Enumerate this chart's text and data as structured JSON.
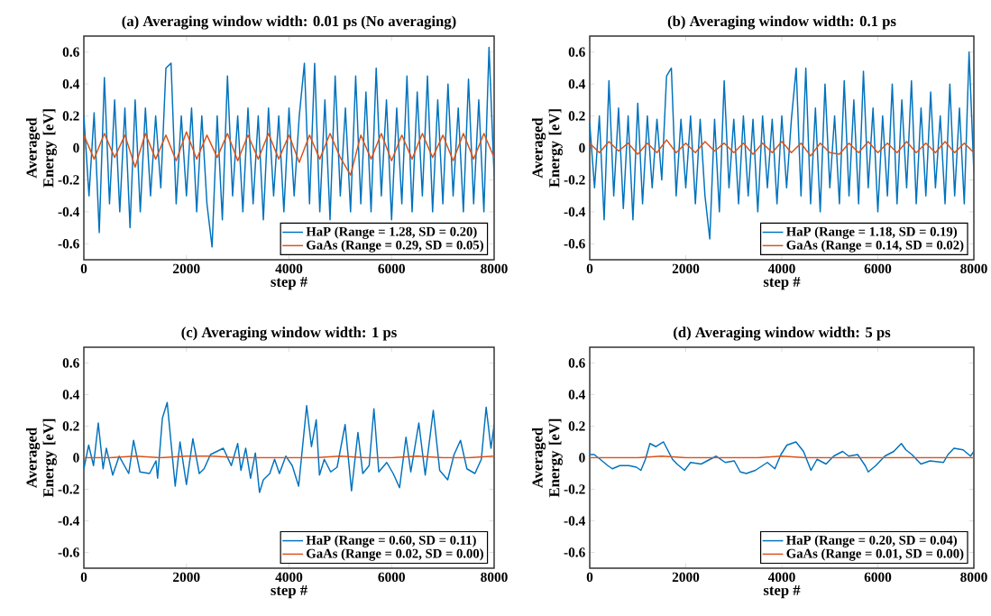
{
  "chart_data": [
    {
      "type": "line",
      "title": "(a) Averaging window width: 0.01 ps (No averaging)",
      "xlabel": "step #",
      "ylabel": "Averaged Energy [eV]",
      "xlim": [
        0,
        8000
      ],
      "ylim": [
        -0.7,
        0.7
      ],
      "xticks": [
        0,
        2000,
        4000,
        6000,
        8000
      ],
      "yticks": [
        -0.6,
        -0.4,
        -0.2,
        0,
        0.2,
        0.4,
        0.6
      ],
      "legend": "bottom right",
      "series": [
        {
          "name": "HaP (Range = 1.28, SD = 0.20)",
          "color": "#0072bd",
          "x": [
            0,
            100,
            200,
            300,
            400,
            500,
            600,
            700,
            800,
            900,
            1000,
            1100,
            1200,
            1300,
            1400,
            1500,
            1600,
            1700,
            1800,
            1900,
            2000,
            2100,
            2200,
            2300,
            2400,
            2500,
            2600,
            2700,
            2800,
            2900,
            3000,
            3100,
            3200,
            3300,
            3400,
            3500,
            3600,
            3700,
            3800,
            3900,
            4000,
            4100,
            4200,
            4300,
            4400,
            4500,
            4600,
            4700,
            4800,
            4900,
            5000,
            5100,
            5200,
            5300,
            5400,
            5500,
            5600,
            5700,
            5800,
            5900,
            6000,
            6100,
            6200,
            6300,
            6400,
            6500,
            6600,
            6700,
            6800,
            6900,
            7000,
            7100,
            7200,
            7300,
            7400,
            7500,
            7600,
            7700,
            7800,
            7900,
            8000
          ],
          "values": [
            0.2,
            -0.3,
            0.22,
            -0.53,
            0.44,
            -0.35,
            0.3,
            -0.4,
            0.25,
            -0.5,
            0.3,
            -0.4,
            0.25,
            -0.3,
            0.2,
            -0.25,
            0.5,
            0.53,
            -0.35,
            0.2,
            -0.3,
            0.25,
            -0.4,
            0.2,
            -0.35,
            -0.62,
            0.2,
            -0.45,
            0.45,
            -0.3,
            0.2,
            -0.4,
            0.25,
            -0.35,
            0.2,
            -0.45,
            0.25,
            -0.3,
            0.2,
            -0.4,
            0.25,
            -0.3,
            0.2,
            0.53,
            -0.35,
            0.53,
            -0.4,
            0.3,
            -0.45,
            0.45,
            -0.3,
            0.25,
            -0.4,
            0.45,
            -0.35,
            0.35,
            -0.4,
            0.5,
            -0.3,
            0.3,
            -0.45,
            0.25,
            -0.35,
            0.45,
            -0.4,
            0.35,
            -0.3,
            0.45,
            -0.4,
            0.3,
            -0.35,
            0.4,
            -0.3,
            0.25,
            -0.4,
            0.43,
            -0.35,
            0.3,
            -0.4,
            0.63,
            -0.18
          ]
        },
        {
          "name": "GaAs (Range = 0.29, SD = 0.05)",
          "color": "#d95319",
          "x": [
            0,
            200,
            400,
            600,
            800,
            1000,
            1200,
            1400,
            1600,
            1800,
            2000,
            2200,
            2400,
            2600,
            2800,
            3000,
            3200,
            3400,
            3600,
            3800,
            4000,
            4200,
            4400,
            4600,
            4800,
            5000,
            5200,
            5400,
            5600,
            5800,
            6000,
            6200,
            6400,
            6600,
            6800,
            7000,
            7200,
            7400,
            7600,
            7800,
            8000
          ],
          "values": [
            0.08,
            -0.07,
            0.09,
            -0.06,
            0.08,
            -0.12,
            0.09,
            -0.07,
            0.08,
            -0.08,
            0.1,
            -0.07,
            0.08,
            -0.06,
            0.09,
            -0.08,
            0.08,
            -0.07,
            0.09,
            -0.07,
            0.08,
            -0.09,
            0.08,
            -0.07,
            0.09,
            -0.06,
            -0.17,
            0.08,
            -0.07,
            0.09,
            -0.08,
            0.08,
            -0.07,
            0.09,
            -0.06,
            0.08,
            -0.08,
            0.09,
            -0.07,
            0.09,
            -0.06
          ]
        }
      ]
    },
    {
      "type": "line",
      "title": "(b) Averaging window width: 0.1 ps",
      "xlabel": "step #",
      "ylabel": "Averaged Energy [eV]",
      "xlim": [
        0,
        8000
      ],
      "ylim": [
        -0.7,
        0.7
      ],
      "xticks": [
        0,
        2000,
        4000,
        6000,
        8000
      ],
      "yticks": [
        -0.6,
        -0.4,
        -0.2,
        0,
        0.2,
        0.4,
        0.6
      ],
      "legend": "bottom right",
      "series": [
        {
          "name": "HaP (Range = 1.18, SD = 0.19)",
          "color": "#0072bd",
          "x": [
            0,
            100,
            200,
            300,
            400,
            500,
            600,
            700,
            800,
            900,
            1000,
            1100,
            1200,
            1300,
            1400,
            1500,
            1600,
            1700,
            1800,
            1900,
            2000,
            2100,
            2200,
            2300,
            2400,
            2500,
            2600,
            2700,
            2800,
            2900,
            3000,
            3100,
            3200,
            3300,
            3400,
            3500,
            3600,
            3700,
            3800,
            3900,
            4000,
            4100,
            4200,
            4300,
            4400,
            4500,
            4600,
            4700,
            4800,
            4900,
            5000,
            5100,
            5200,
            5300,
            5400,
            5500,
            5600,
            5700,
            5800,
            5900,
            6000,
            6100,
            6200,
            6300,
            6400,
            6500,
            6600,
            6700,
            6800,
            6900,
            7000,
            7100,
            7200,
            7300,
            7400,
            7500,
            7600,
            7700,
            7800,
            7900,
            8000
          ],
          "values": [
            0.15,
            -0.25,
            0.2,
            -0.45,
            0.42,
            -0.3,
            0.25,
            -0.38,
            0.2,
            -0.45,
            0.28,
            -0.35,
            0.2,
            -0.25,
            0.18,
            -0.2,
            0.45,
            0.5,
            -0.3,
            0.18,
            -0.25,
            0.2,
            -0.35,
            0.18,
            -0.3,
            -0.57,
            0.18,
            -0.4,
            0.42,
            -0.25,
            0.18,
            -0.35,
            0.2,
            -0.3,
            0.18,
            -0.4,
            0.2,
            -0.25,
            0.18,
            -0.35,
            0.2,
            -0.25,
            0.18,
            0.5,
            -0.3,
            0.5,
            -0.35,
            0.25,
            -0.4,
            0.4,
            -0.25,
            0.2,
            -0.35,
            0.42,
            -0.3,
            0.3,
            -0.35,
            0.48,
            -0.25,
            0.25,
            -0.4,
            0.2,
            -0.3,
            0.4,
            -0.35,
            0.3,
            -0.25,
            0.42,
            -0.35,
            0.25,
            -0.3,
            0.35,
            -0.25,
            0.2,
            -0.35,
            0.4,
            -0.3,
            0.25,
            -0.35,
            0.6,
            -0.15
          ]
        },
        {
          "name": "GaAs (Range = 0.14, SD = 0.02)",
          "color": "#d95319",
          "x": [
            0,
            200,
            400,
            600,
            800,
            1000,
            1200,
            1400,
            1600,
            1800,
            2000,
            2200,
            2400,
            2600,
            2800,
            3000,
            3200,
            3400,
            3600,
            3800,
            4000,
            4200,
            4400,
            4600,
            4800,
            5000,
            5200,
            5400,
            5600,
            5800,
            6000,
            6200,
            6400,
            6600,
            6800,
            7000,
            7200,
            7400,
            7600,
            7800,
            8000
          ],
          "values": [
            0.03,
            -0.03,
            0.04,
            -0.02,
            0.03,
            -0.04,
            0.03,
            -0.03,
            0.05,
            -0.03,
            0.03,
            -0.03,
            0.04,
            -0.02,
            0.03,
            -0.03,
            0.03,
            -0.04,
            0.03,
            -0.03,
            0.04,
            -0.03,
            0.03,
            -0.05,
            0.03,
            -0.03,
            -0.04,
            0.03,
            -0.03,
            0.04,
            -0.03,
            0.03,
            -0.03,
            0.04,
            -0.03,
            0.03,
            -0.03,
            0.04,
            -0.03,
            0.03,
            -0.03
          ]
        }
      ]
    },
    {
      "type": "line",
      "title": "(c) Averaging window width: 1 ps",
      "xlabel": "step #",
      "ylabel": "Averaged Energy [eV]",
      "xlim": [
        0,
        8000
      ],
      "ylim": [
        -0.7,
        0.7
      ],
      "xticks": [
        0,
        2000,
        4000,
        6000,
        8000
      ],
      "yticks": [
        -0.6,
        -0.4,
        -0.2,
        0,
        0.2,
        0.4,
        0.6
      ],
      "legend": "bottom right",
      "series": [
        {
          "name": "HaP (Range = 0.60, SD = 0.11)",
          "color": "#0072bd",
          "x": [
            0,
            94,
            188,
            281,
            375,
            438,
            563,
            688,
            875,
            969,
            1094,
            1281,
            1406,
            1438,
            1531,
            1625,
            1781,
            1875,
            2000,
            2125,
            2250,
            2344,
            2469,
            2594,
            2719,
            2875,
            3000,
            3063,
            3156,
            3250,
            3344,
            3425,
            3500,
            3625,
            3719,
            3813,
            3938,
            4063,
            4188,
            4344,
            4438,
            4531,
            4594,
            4688,
            4813,
            4938,
            5094,
            5219,
            5344,
            5438,
            5563,
            5656,
            5750,
            5906,
            6031,
            6156,
            6281,
            6375,
            6531,
            6656,
            6813,
            6938,
            7094,
            7219,
            7344,
            7469,
            7625,
            7750,
            7844,
            7938,
            8000
          ],
          "values": [
            -0.07,
            0.08,
            -0.05,
            0.22,
            -0.07,
            0.06,
            -0.11,
            0.01,
            -0.1,
            0.11,
            -0.09,
            -0.1,
            -0.02,
            -0.13,
            0.25,
            0.35,
            -0.18,
            0.1,
            -0.17,
            0.12,
            -0.1,
            -0.07,
            0.02,
            0.04,
            0.06,
            -0.05,
            0.09,
            -0.08,
            0.06,
            -0.13,
            0.03,
            -0.22,
            -0.14,
            -0.1,
            -0.01,
            -0.1,
            0.01,
            -0.05,
            -0.18,
            0.33,
            0.07,
            0.24,
            -0.11,
            -0.01,
            -0.09,
            -0.06,
            0.21,
            -0.21,
            0.16,
            -0.1,
            -0.05,
            0.31,
            -0.09,
            -0.03,
            -0.1,
            -0.19,
            0.13,
            -0.09,
            0.22,
            -0.11,
            0.3,
            -0.08,
            -0.14,
            0.02,
            0.11,
            -0.07,
            -0.1,
            -0.01,
            0.32,
            0.06,
            0.21
          ]
        },
        {
          "name": "GaAs (Range = 0.02, SD = 0.00)",
          "color": "#d95319",
          "x": [
            0,
            500,
            1000,
            1500,
            2000,
            2500,
            3000,
            3500,
            4000,
            4500,
            5000,
            5500,
            6000,
            6500,
            7000,
            7500,
            8000
          ],
          "values": [
            0,
            0,
            0.01,
            0,
            0.01,
            0.01,
            0,
            0,
            0,
            0,
            0.01,
            0,
            0,
            0.01,
            0,
            0,
            0.01
          ]
        }
      ]
    },
    {
      "type": "line",
      "title": "(d) Averaging window width: 5 ps",
      "xlabel": "step #",
      "ylabel": "Averaged Energy [eV]",
      "xlim": [
        0,
        8000
      ],
      "ylim": [
        -0.7,
        0.7
      ],
      "xticks": [
        0,
        2000,
        4000,
        6000,
        8000
      ],
      "yticks": [
        -0.6,
        -0.4,
        -0.2,
        0,
        0.2,
        0.4,
        0.6
      ],
      "legend": "bottom right",
      "series": [
        {
          "name": "HaP (Range = 0.20, SD = 0.04)",
          "color": "#0072bd",
          "x": [
            0,
            94,
            219,
            376,
            470,
            627,
            815,
            972,
            1066,
            1160,
            1254,
            1379,
            1536,
            1724,
            1818,
            1975,
            2100,
            2320,
            2508,
            2633,
            2822,
            3010,
            3135,
            3260,
            3449,
            3699,
            3856,
            3981,
            4107,
            4295,
            4452,
            4608,
            4734,
            4922,
            5079,
            5267,
            5392,
            5580,
            5737,
            5800,
            5957,
            6145,
            6333,
            6489,
            6584,
            6709,
            6897,
            7085,
            7367,
            7461,
            7587,
            7775,
            7931,
            8000
          ],
          "values": [
            0.02,
            0.02,
            -0.01,
            -0.05,
            -0.07,
            -0.05,
            -0.05,
            -0.06,
            -0.08,
            -0.01,
            0.09,
            0.07,
            0.1,
            -0.01,
            -0.04,
            -0.08,
            -0.03,
            -0.04,
            -0.01,
            0.01,
            -0.03,
            -0.02,
            -0.09,
            -0.1,
            -0.08,
            -0.03,
            -0.07,
            0.02,
            0.08,
            0.1,
            0.04,
            -0.08,
            -0.01,
            -0.04,
            0.01,
            0.04,
            0.01,
            0.02,
            -0.05,
            -0.09,
            -0.05,
            0.01,
            0.04,
            0.09,
            0.05,
            0.02,
            -0.04,
            -0.02,
            -0.03,
            0.02,
            0.06,
            0.05,
            0.01,
            0.04
          ]
        },
        {
          "name": "GaAs (Range = 0.01, SD = 0.00)",
          "color": "#d95319",
          "x": [
            0,
            500,
            1000,
            1500,
            2000,
            2500,
            3000,
            3500,
            4000,
            4500,
            5000,
            5500,
            6000,
            6500,
            7000,
            7500,
            8000
          ],
          "values": [
            0,
            0,
            0,
            0.01,
            0,
            0,
            0,
            0,
            0.01,
            0,
            0,
            0,
            0,
            0,
            0,
            0,
            0
          ]
        }
      ]
    }
  ]
}
